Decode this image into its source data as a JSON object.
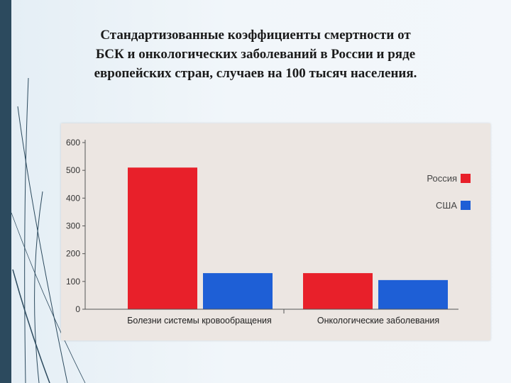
{
  "slide": {
    "title": "Стандартизованные коэффициенты смертности от БСК и онкологических заболеваний  в России и ряде европейских стран, случаев на 100 тысяч населения."
  },
  "chart_data": {
    "type": "bar",
    "categories": [
      "Болезни системы кровообращения",
      "Онкологические заболевания"
    ],
    "series": [
      {
        "name": "Россия",
        "values": [
          510,
          130
        ],
        "color": "#e8202a"
      },
      {
        "name": "США",
        "values": [
          130,
          105
        ],
        "color": "#1e5fd6"
      }
    ],
    "title": "",
    "xlabel": "",
    "ylabel": "",
    "ylim": [
      0,
      600
    ],
    "yticks": [
      "0",
      "100",
      "200",
      "300",
      "400",
      "500",
      "600"
    ],
    "legend_position": "top-right",
    "grid": false
  }
}
